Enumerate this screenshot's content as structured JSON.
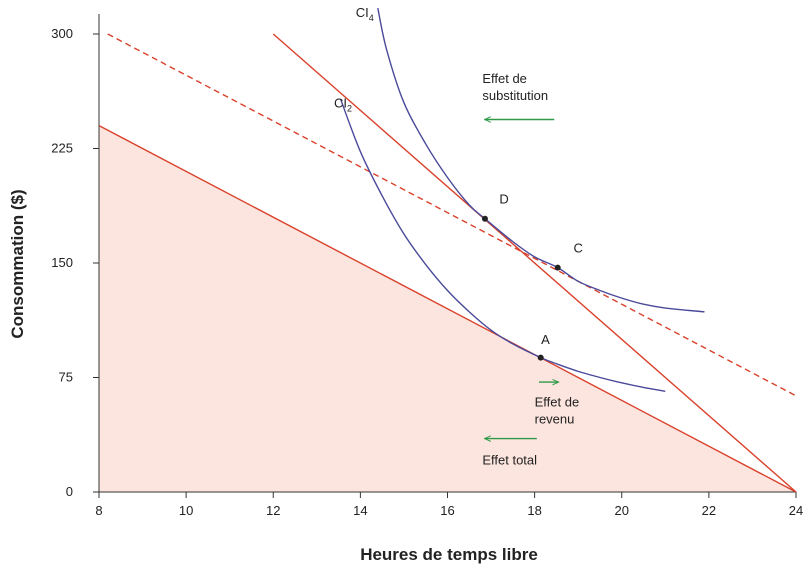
{
  "chart_data": {
    "type": "line",
    "xlabel": "Heures de temps libre",
    "ylabel": "Consommation ($)",
    "xlim": [
      8,
      24
    ],
    "ylim": [
      0,
      300
    ],
    "x_ticks": [
      8,
      10,
      12,
      14,
      16,
      18,
      20,
      22,
      24
    ],
    "y_ticks": [
      0,
      75,
      150,
      225,
      300
    ],
    "grid": false,
    "colors": {
      "budget_line": "#d9412b",
      "indifference_curve": "#4a4a9a",
      "arrow": "#2e9a47",
      "feasible_fill": "#fde5df",
      "axis": "#333333",
      "point": "#222222"
    },
    "feasible_set": [
      [
        8,
        240
      ],
      [
        24,
        0
      ],
      [
        8,
        0
      ]
    ],
    "budget_lines": [
      {
        "style": "solid",
        "points": [
          [
            8,
            240
          ],
          [
            24,
            0
          ]
        ]
      },
      {
        "style": "solid",
        "points": [
          [
            12,
            300
          ],
          [
            24,
            0
          ]
        ]
      },
      {
        "style": "dashed",
        "points": [
          [
            8.2,
            300
          ],
          [
            24,
            63
          ]
        ]
      }
    ],
    "indifference_curves": [
      {
        "label": "CI",
        "subscript": "2",
        "label_at": [
          13.6,
          252
        ],
        "points": [
          [
            13.55,
            257
          ],
          [
            14.0,
            223
          ],
          [
            14.5,
            194
          ],
          [
            15.0,
            169
          ],
          [
            15.5,
            149
          ],
          [
            16.0,
            132
          ],
          [
            16.5,
            118
          ],
          [
            17.0,
            106
          ],
          [
            17.5,
            97
          ],
          [
            18.14,
            88
          ],
          [
            18.5,
            84
          ],
          [
            19.0,
            79
          ],
          [
            19.5,
            75
          ],
          [
            20.0,
            71.5
          ],
          [
            20.5,
            68.5
          ],
          [
            21.0,
            66
          ]
        ]
      },
      {
        "label": "CI",
        "subscript": "4",
        "label_at": [
          14.1,
          311
        ],
        "points": [
          [
            14.4,
            317
          ],
          [
            14.6,
            290
          ],
          [
            15.0,
            255
          ],
          [
            15.5,
            228
          ],
          [
            16.0,
            206
          ],
          [
            16.5,
            188
          ],
          [
            16.86,
            179
          ],
          [
            17.5,
            164
          ],
          [
            18.0,
            154
          ],
          [
            18.53,
            147
          ],
          [
            19.0,
            138
          ],
          [
            19.5,
            132
          ],
          [
            20.0,
            127
          ],
          [
            20.5,
            123
          ],
          [
            21.0,
            120.5
          ],
          [
            21.9,
            118
          ]
        ]
      }
    ],
    "points": [
      {
        "label": "A",
        "x": 18.14,
        "y": 88,
        "label_at": [
          18.25,
          97
        ]
      },
      {
        "label": "C",
        "x": 18.53,
        "y": 147,
        "label_at": [
          19.0,
          157
        ]
      },
      {
        "label": "D",
        "x": 16.86,
        "y": 179,
        "label_at": [
          17.3,
          189
        ]
      }
    ],
    "annotations": [
      {
        "text_lines": [
          "Effet de",
          "substitution"
        ],
        "at": [
          16.8,
          268
        ],
        "arrow": {
          "from": [
            18.45,
            244
          ],
          "to": [
            16.85,
            244
          ]
        }
      },
      {
        "text_lines": [
          "Effet de",
          "revenu"
        ],
        "at": [
          18.0,
          56
        ],
        "arrow": {
          "from": [
            18.1,
            72
          ],
          "to": [
            18.55,
            72
          ]
        }
      },
      {
        "text_lines": [
          "Effet total"
        ],
        "at": [
          16.8,
          18
        ],
        "arrow": {
          "from": [
            18.05,
            35
          ],
          "to": [
            16.85,
            35
          ]
        }
      }
    ]
  }
}
